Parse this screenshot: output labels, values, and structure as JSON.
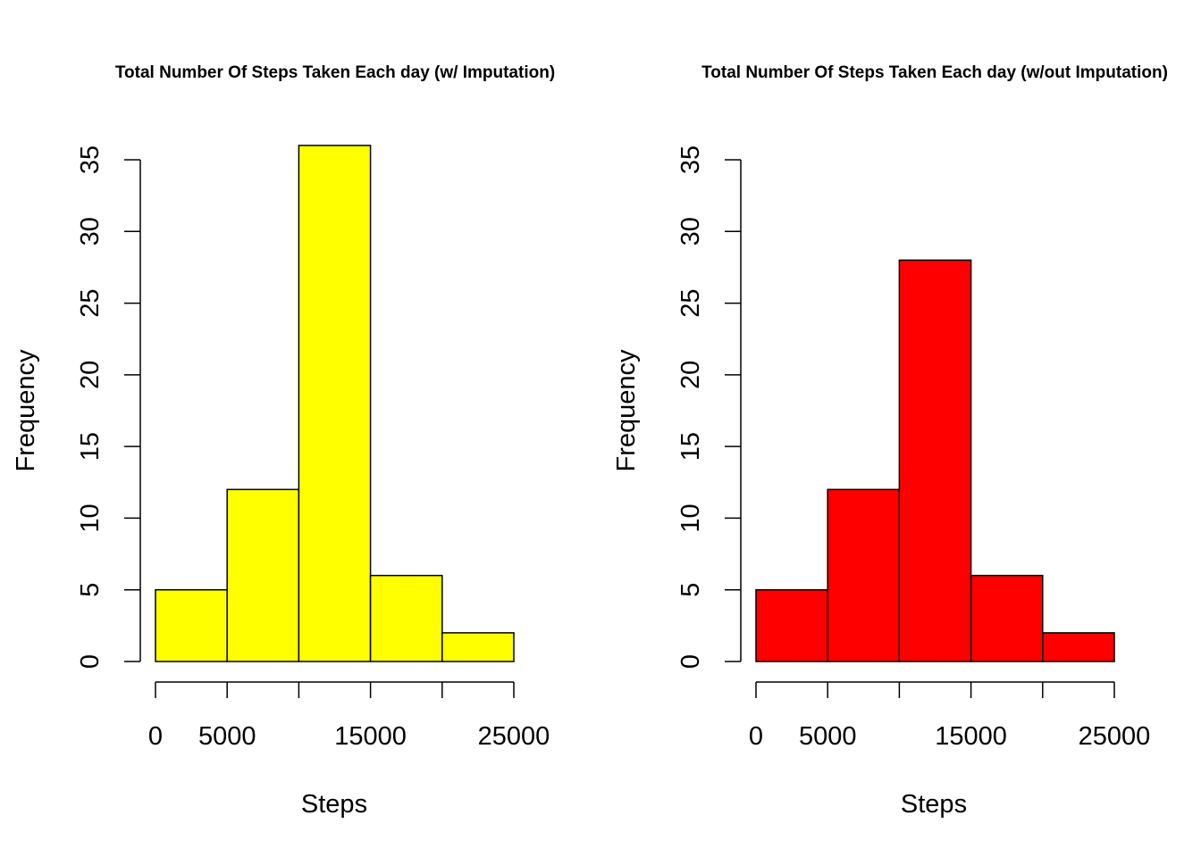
{
  "chart_data": [
    {
      "type": "bar",
      "title": "Total Number Of Steps Taken Each day (w/ Imputation)",
      "xlabel": "Steps",
      "ylabel": "Frequency",
      "bins": [
        [
          0,
          5000
        ],
        [
          5000,
          10000
        ],
        [
          10000,
          15000
        ],
        [
          15000,
          20000
        ],
        [
          20000,
          25000
        ]
      ],
      "values": [
        5,
        12,
        36,
        6,
        2
      ],
      "xlim": [
        0,
        25000
      ],
      "ylim": [
        0,
        35
      ],
      "xticks": [
        0,
        5000,
        10000,
        15000,
        20000,
        25000
      ],
      "xtick_labels": [
        "0",
        "5000",
        "",
        "15000",
        "",
        "25000"
      ],
      "yticks": [
        0,
        5,
        10,
        15,
        20,
        25,
        30,
        35
      ],
      "ytick_labels": [
        "0",
        "5",
        "10",
        "15",
        "20",
        "25",
        "30",
        "35"
      ],
      "bar_color": "#FFFF00",
      "grid": false,
      "legend": "none"
    },
    {
      "type": "bar",
      "title": "Total Number Of Steps Taken Each day (w/out Imputation)",
      "xlabel": "Steps",
      "ylabel": "Frequency",
      "bins": [
        [
          0,
          5000
        ],
        [
          5000,
          10000
        ],
        [
          10000,
          15000
        ],
        [
          15000,
          20000
        ],
        [
          20000,
          25000
        ]
      ],
      "values": [
        5,
        12,
        28,
        6,
        2
      ],
      "xlim": [
        0,
        25000
      ],
      "ylim": [
        0,
        35
      ],
      "xticks": [
        0,
        5000,
        10000,
        15000,
        20000,
        25000
      ],
      "xtick_labels": [
        "0",
        "5000",
        "",
        "15000",
        "",
        "25000"
      ],
      "yticks": [
        0,
        5,
        10,
        15,
        20,
        25,
        30,
        35
      ],
      "ytick_labels": [
        "0",
        "5",
        "10",
        "15",
        "20",
        "25",
        "30",
        "35"
      ],
      "bar_color": "#FF0000",
      "grid": false,
      "legend": "none"
    }
  ]
}
